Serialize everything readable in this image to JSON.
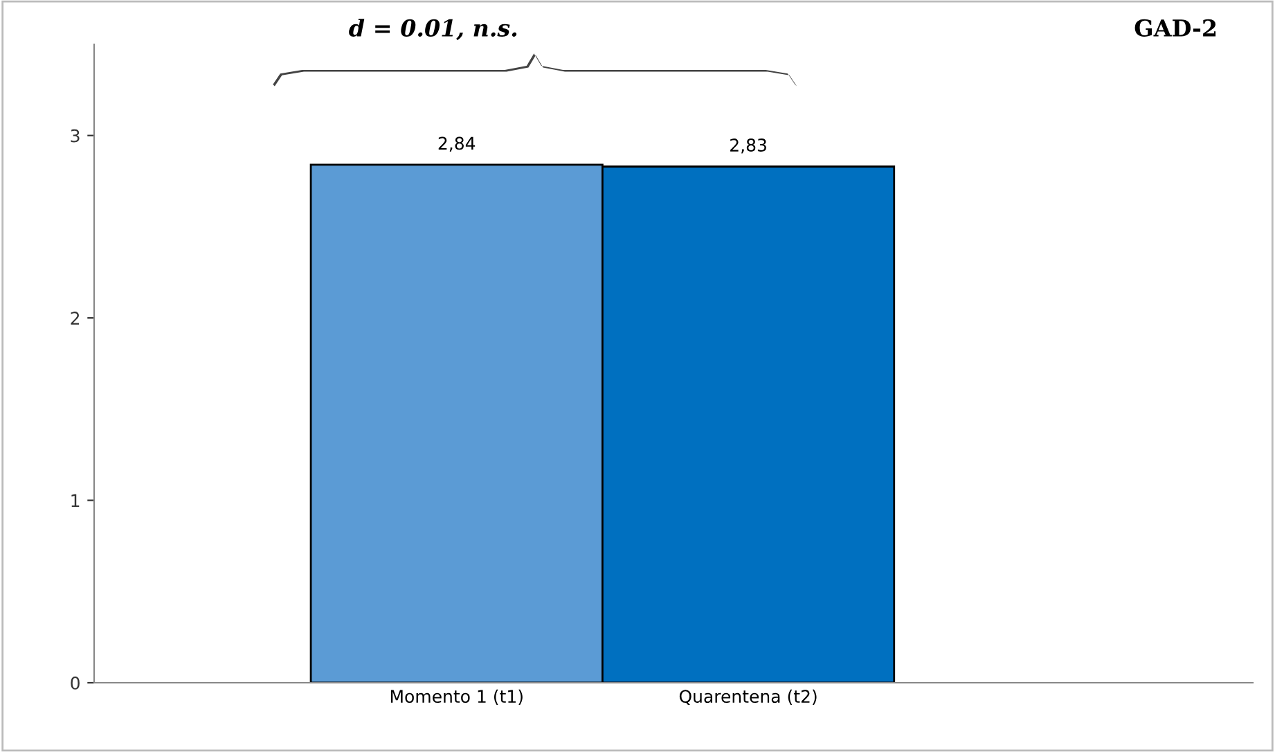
{
  "chart_data": {
    "type": "bar",
    "title": "GAD-2",
    "annotations": [
      "d = 0.01, n.s."
    ],
    "categories": [
      "Momento 1 (t1)",
      "Quarentena (t2)"
    ],
    "values": [
      2.84,
      2.83
    ],
    "colors": [
      "#5b9bd5",
      "#0070c0"
    ],
    "value_labels": [
      "2,84",
      "2,83"
    ],
    "ylim": [
      0,
      3.5
    ],
    "yticks": [
      0,
      1,
      2,
      3
    ],
    "grid": false,
    "legend": false
  }
}
